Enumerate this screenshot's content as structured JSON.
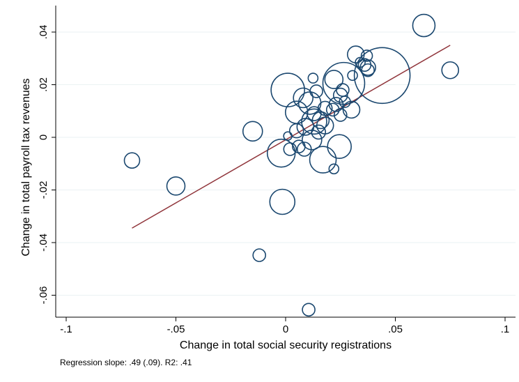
{
  "chart_data": {
    "type": "scatter",
    "title": "",
    "xlabel": "Change in total social security registrations",
    "ylabel": "Change in total payroll tax revenues",
    "xlim": [
      -0.1,
      0.1
    ],
    "ylim": [
      -0.068,
      0.046
    ],
    "x_ticks": [
      -0.1,
      -0.05,
      0,
      0.05,
      0.1
    ],
    "x_tick_labels": [
      "-.1",
      "-.05",
      "0",
      ".05",
      ".1"
    ],
    "y_ticks": [
      -0.06,
      -0.04,
      -0.02,
      0,
      0.02,
      0.04
    ],
    "y_tick_labels": [
      "-.06",
      "-.04",
      "-.02",
      "0",
      ".02",
      ".04"
    ],
    "grid": true,
    "marker_style": "hollow circles, size proportional to weight",
    "points": [
      {
        "x": -0.07,
        "y": -0.0088,
        "size": 11
      },
      {
        "x": -0.05,
        "y": -0.0185,
        "size": 13
      },
      {
        "x": -0.015,
        "y": 0.0023,
        "size": 14
      },
      {
        "x": -0.012,
        "y": -0.0448,
        "size": 9
      },
      {
        "x": -0.0015,
        "y": -0.0245,
        "size": 18
      },
      {
        "x": -0.002,
        "y": -0.006,
        "size": 20
      },
      {
        "x": 0.001,
        "y": 0.0005,
        "size": 6
      },
      {
        "x": 0.002,
        "y": -0.0045,
        "size": 9
      },
      {
        "x": 0.001,
        "y": 0.018,
        "size": 24
      },
      {
        "x": 0.005,
        "y": 0.0025,
        "size": 10
      },
      {
        "x": 0.006,
        "y": -0.0035,
        "size": 9
      },
      {
        "x": 0.005,
        "y": 0.0095,
        "size": 16
      },
      {
        "x": 0.008,
        "y": 0.015,
        "size": 14
      },
      {
        "x": 0.0085,
        "y": -0.0045,
        "size": 10
      },
      {
        "x": 0.009,
        "y": 0.004,
        "size": 12
      },
      {
        "x": 0.011,
        "y": 0.013,
        "size": 16
      },
      {
        "x": 0.012,
        "y": -0.001,
        "size": 14
      },
      {
        "x": 0.0125,
        "y": 0.0225,
        "size": 7
      },
      {
        "x": 0.013,
        "y": 0.006,
        "size": 18
      },
      {
        "x": 0.013,
        "y": 0.009,
        "size": 10
      },
      {
        "x": 0.014,
        "y": 0.0175,
        "size": 9
      },
      {
        "x": 0.015,
        "y": 0.002,
        "size": 10
      },
      {
        "x": 0.016,
        "y": 0.0065,
        "size": 12
      },
      {
        "x": 0.017,
        "y": -0.0085,
        "size": 19
      },
      {
        "x": 0.018,
        "y": 0.011,
        "size": 10
      },
      {
        "x": 0.018,
        "y": 0.0045,
        "size": 12
      },
      {
        "x": 0.0105,
        "y": -0.0655,
        "size": 9
      },
      {
        "x": 0.0215,
        "y": 0.0105,
        "size": 9
      },
      {
        "x": 0.022,
        "y": 0.022,
        "size": 13
      },
      {
        "x": 0.022,
        "y": -0.012,
        "size": 7
      },
      {
        "x": 0.023,
        "y": 0.0125,
        "size": 10
      },
      {
        "x": 0.0245,
        "y": -0.0035,
        "size": 17
      },
      {
        "x": 0.025,
        "y": 0.0085,
        "size": 9
      },
      {
        "x": 0.025,
        "y": 0.016,
        "size": 10
      },
      {
        "x": 0.026,
        "y": 0.018,
        "size": 9
      },
      {
        "x": 0.027,
        "y": 0.0135,
        "size": 8
      },
      {
        "x": 0.0265,
        "y": 0.0205,
        "size": 30
      },
      {
        "x": 0.03,
        "y": 0.0105,
        "size": 12
      },
      {
        "x": 0.0305,
        "y": 0.0235,
        "size": 7
      },
      {
        "x": 0.032,
        "y": 0.0315,
        "size": 12
      },
      {
        "x": 0.034,
        "y": 0.0285,
        "size": 7
      },
      {
        "x": 0.036,
        "y": 0.0275,
        "size": 9
      },
      {
        "x": 0.037,
        "y": 0.031,
        "size": 8
      },
      {
        "x": 0.0375,
        "y": 0.0265,
        "size": 11
      },
      {
        "x": 0.0375,
        "y": 0.0255,
        "size": 9
      },
      {
        "x": 0.044,
        "y": 0.0235,
        "size": 40
      },
      {
        "x": 0.063,
        "y": 0.0425,
        "size": 16
      },
      {
        "x": 0.075,
        "y": 0.0255,
        "size": 12
      }
    ],
    "fit_line": {
      "x1": -0.07,
      "y1": -0.0345,
      "x2": 0.075,
      "y2": 0.035
    },
    "annotation": "Regression slope: .49 (.09). R2: .41",
    "colors": {
      "marker": "#1a476f",
      "fit_line": "#90353b",
      "grid": "#eaf2f3"
    }
  }
}
